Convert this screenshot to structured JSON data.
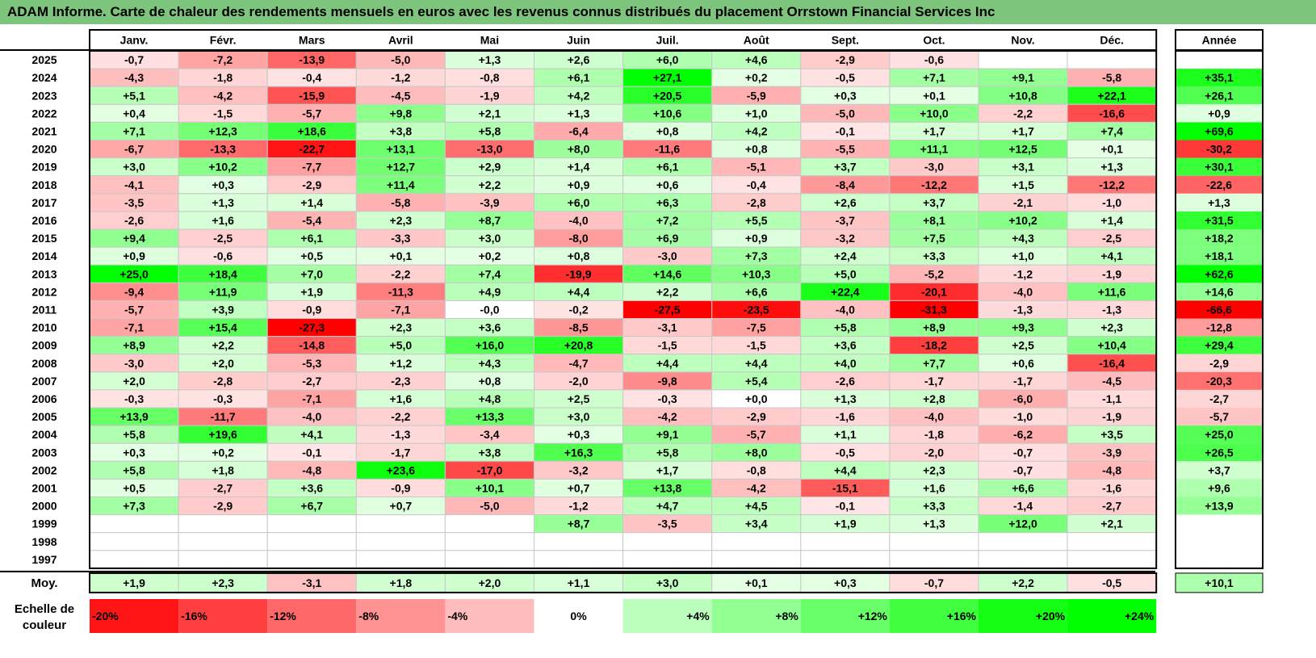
{
  "title": "ADAM Informe. Carte de chaleur des rendements mensuels en euros avec les revenus connus distribués du placement Orrstown Financial Services Inc",
  "chart_data": {
    "type": "heatmap",
    "title": "ADAM Informe. Carte de chaleur des rendements mensuels en euros avec les revenus connus distribués du placement Orrstown Financial Services Inc",
    "months": [
      "Janv.",
      "Févr.",
      "Mars",
      "Avril",
      "Mai",
      "Juin",
      "Juil.",
      "Août",
      "Sept.",
      "Oct.",
      "Nov.",
      "Déc."
    ],
    "year_header": "Année",
    "rows": [
      {
        "year": "2025",
        "values": [
          "-0,7",
          "-7,2",
          "-13,9",
          "-5,0",
          "+1,3",
          "+2,6",
          "+6,0",
          "+4,6",
          "-2,9",
          "-0,6",
          "",
          ""
        ],
        "total": ""
      },
      {
        "year": "2024",
        "values": [
          "-4,3",
          "-1,8",
          "-0,4",
          "-1,2",
          "-0,8",
          "+6,1",
          "+27,1",
          "+0,2",
          "-0,5",
          "+7,1",
          "+9,1",
          "-5,8"
        ],
        "total": "+35,1"
      },
      {
        "year": "2023",
        "values": [
          "+5,1",
          "-4,2",
          "-15,9",
          "-4,5",
          "-1,9",
          "+4,2",
          "+20,5",
          "-5,9",
          "+0,3",
          "+0,1",
          "+10,8",
          "+22,1"
        ],
        "total": "+26,1"
      },
      {
        "year": "2022",
        "values": [
          "+0,4",
          "-1,5",
          "-5,7",
          "+9,8",
          "+2,1",
          "+1,3",
          "+10,6",
          "+1,0",
          "-5,0",
          "+10,0",
          "-2,2",
          "-16,6"
        ],
        "total": "+0,9"
      },
      {
        "year": "2021",
        "values": [
          "+7,1",
          "+12,3",
          "+18,6",
          "+3,8",
          "+5,8",
          "-6,4",
          "+0,8",
          "+4,2",
          "-0,1",
          "+1,7",
          "+1,7",
          "+7,4"
        ],
        "total": "+69,6"
      },
      {
        "year": "2020",
        "values": [
          "-6,7",
          "-13,3",
          "-22,7",
          "+13,1",
          "-13,0",
          "+8,0",
          "-11,6",
          "+0,8",
          "-5,5",
          "+11,1",
          "+12,5",
          "+0,1"
        ],
        "total": "-30,2"
      },
      {
        "year": "2019",
        "values": [
          "+3,0",
          "+10,2",
          "-7,7",
          "+12,7",
          "+2,9",
          "+1,4",
          "+6,1",
          "-5,1",
          "+3,7",
          "-3,0",
          "+3,1",
          "+1,3"
        ],
        "total": "+30,1"
      },
      {
        "year": "2018",
        "values": [
          "-4,1",
          "+0,3",
          "-2,9",
          "+11,4",
          "+2,2",
          "+0,9",
          "+0,6",
          "-0,4",
          "-8,4",
          "-12,2",
          "+1,5",
          "-12,2"
        ],
        "total": "-22,6"
      },
      {
        "year": "2017",
        "values": [
          "-3,5",
          "+1,3",
          "+1,4",
          "-5,8",
          "-3,9",
          "+6,0",
          "+6,3",
          "-2,8",
          "+2,6",
          "+3,7",
          "-2,1",
          "-1,0"
        ],
        "total": "+1,3"
      },
      {
        "year": "2016",
        "values": [
          "-2,6",
          "+1,6",
          "-5,4",
          "+2,3",
          "+8,7",
          "-4,0",
          "+7,2",
          "+5,5",
          "-3,7",
          "+8,1",
          "+10,2",
          "+1,4"
        ],
        "total": "+31,5"
      },
      {
        "year": "2015",
        "values": [
          "+9,4",
          "-2,5",
          "+6,1",
          "-3,3",
          "+3,0",
          "-8,0",
          "+6,9",
          "+0,9",
          "-3,2",
          "+7,5",
          "+4,3",
          "-2,5"
        ],
        "total": "+18,2"
      },
      {
        "year": "2014",
        "values": [
          "+0,9",
          "-0,6",
          "+0,5",
          "+0,1",
          "+0,2",
          "+0,8",
          "-3,0",
          "+7,3",
          "+2,4",
          "+3,3",
          "+1,0",
          "+4,1"
        ],
        "total": "+18,1"
      },
      {
        "year": "2013",
        "values": [
          "+25,0",
          "+18,4",
          "+7,0",
          "-2,2",
          "+7,4",
          "-19,9",
          "+14,6",
          "+10,3",
          "+5,0",
          "-5,2",
          "-1,2",
          "-1,9"
        ],
        "total": "+62,6"
      },
      {
        "year": "2012",
        "values": [
          "-9,4",
          "+11,9",
          "+1,9",
          "-11,3",
          "+4,9",
          "+4,4",
          "+2,2",
          "+6,6",
          "+22,4",
          "-20,1",
          "-4,0",
          "+11,6"
        ],
        "total": "+14,6"
      },
      {
        "year": "2011",
        "values": [
          "-5,7",
          "+3,9",
          "-0,9",
          "-7,1",
          "-0,0",
          "-0,2",
          "-27,5",
          "-23,5",
          "-4,0",
          "-31,3",
          "-1,3",
          "-1,3"
        ],
        "total": "-66,6"
      },
      {
        "year": "2010",
        "values": [
          "-7,1",
          "+15,4",
          "-27,3",
          "+2,3",
          "+3,6",
          "-8,5",
          "-3,1",
          "-7,5",
          "+5,8",
          "+8,9",
          "+9,3",
          "+2,3"
        ],
        "total": "-12,8"
      },
      {
        "year": "2009",
        "values": [
          "+8,9",
          "+2,2",
          "-14,8",
          "+5,0",
          "+16,0",
          "+20,8",
          "-1,5",
          "-1,5",
          "+3,6",
          "-18,2",
          "+2,5",
          "+10,4"
        ],
        "total": "+29,4"
      },
      {
        "year": "2008",
        "values": [
          "-3,0",
          "+2,0",
          "-5,3",
          "+1,2",
          "+4,3",
          "-4,7",
          "+4,4",
          "+4,4",
          "+4,0",
          "+7,7",
          "+0,6",
          "-16,4"
        ],
        "total": "-2,9"
      },
      {
        "year": "2007",
        "values": [
          "+2,0",
          "-2,8",
          "-2,7",
          "-2,3",
          "+0,8",
          "-2,0",
          "-9,8",
          "+5,4",
          "-2,6",
          "-1,7",
          "-1,7",
          "-4,5"
        ],
        "total": "-20,3"
      },
      {
        "year": "2006",
        "values": [
          "-0,3",
          "-0,3",
          "-7,1",
          "+1,6",
          "+4,8",
          "+2,5",
          "-0,3",
          "+0,0",
          "+1,3",
          "+2,8",
          "-6,0",
          "-1,1"
        ],
        "total": "-2,7"
      },
      {
        "year": "2005",
        "values": [
          "+13,9",
          "-11,7",
          "-4,0",
          "-2,2",
          "+13,3",
          "+3,0",
          "-4,2",
          "-2,9",
          "-1,6",
          "-4,0",
          "-1,0",
          "-1,9"
        ],
        "total": "-5,7"
      },
      {
        "year": "2004",
        "values": [
          "+5,8",
          "+19,6",
          "+4,1",
          "-1,3",
          "-3,4",
          "+0,3",
          "+9,1",
          "-5,7",
          "+1,1",
          "-1,8",
          "-6,2",
          "+3,5"
        ],
        "total": "+25,0"
      },
      {
        "year": "2003",
        "values": [
          "+0,3",
          "+0,2",
          "-0,1",
          "-1,7",
          "+3,8",
          "+16,3",
          "+5,8",
          "+8,0",
          "-0,5",
          "-2,0",
          "-0,7",
          "-3,9"
        ],
        "total": "+26,5"
      },
      {
        "year": "2002",
        "values": [
          "+5,8",
          "+1,8",
          "-4,8",
          "+23,6",
          "-17,0",
          "-3,2",
          "+1,7",
          "-0,8",
          "+4,4",
          "+2,3",
          "-0,7",
          "-4,8"
        ],
        "total": "+3,7"
      },
      {
        "year": "2001",
        "values": [
          "+0,5",
          "-2,7",
          "+3,6",
          "-0,9",
          "+10,1",
          "+0,7",
          "+13,8",
          "-4,2",
          "-15,1",
          "+1,6",
          "+6,6",
          "-1,6"
        ],
        "total": "+9,6"
      },
      {
        "year": "2000",
        "values": [
          "+7,3",
          "-2,9",
          "+6,7",
          "+0,7",
          "-5,0",
          "-1,2",
          "+4,7",
          "+4,5",
          "-0,1",
          "+3,3",
          "-1,4",
          "-2,7"
        ],
        "total": "+13,9"
      },
      {
        "year": "1999",
        "values": [
          "",
          "",
          "",
          "",
          "",
          "+8,7",
          "-3,5",
          "+3,4",
          "+1,9",
          "+1,3",
          "+12,0",
          "+2,1"
        ],
        "total": ""
      },
      {
        "year": "1998",
        "values": [
          "",
          "",
          "",
          "",
          "",
          "",
          "",
          "",
          "",
          "",
          "",
          ""
        ],
        "total": ""
      },
      {
        "year": "1997",
        "values": [
          "",
          "",
          "",
          "",
          "",
          "",
          "",
          "",
          "",
          "",
          "",
          ""
        ],
        "total": ""
      }
    ],
    "average": {
      "label": "Moy.",
      "values": [
        "+1,9",
        "+2,3",
        "-3,1",
        "+1,8",
        "+2,0",
        "+1,1",
        "+3,0",
        "+0,1",
        "+0,3",
        "-0,7",
        "+2,2",
        "-0,5"
      ],
      "total": "+10,1"
    },
    "scale": {
      "label_line1": "Echelle de",
      "label_line2": "couleur",
      "items": [
        "-20%",
        "-16%",
        "-12%",
        "-8%",
        "-4%",
        "0%",
        "+4%",
        "+8%",
        "+12%",
        "+16%",
        "+20%",
        "+24%"
      ]
    },
    "colors": {
      "negative_max": "#ff0000",
      "neutral": "#ffffff",
      "positive_max": "#00ff00",
      "title_bg": "#7dc47d"
    }
  }
}
